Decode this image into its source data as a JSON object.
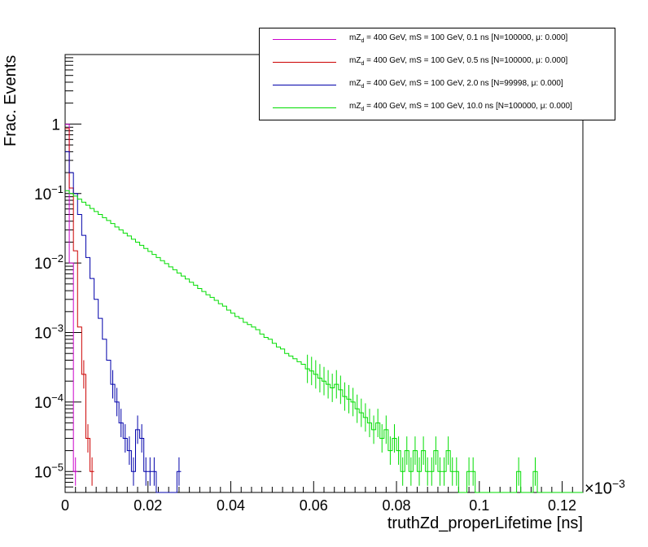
{
  "chart_data": {
    "type": "line",
    "xlabel": "truthZd_properLifetime [ns]",
    "ylabel": "Frac. Events",
    "x_multiplier_label": "×10",
    "x_multiplier_exp": "−3",
    "xlim": [
      0,
      0.125
    ],
    "ylim": [
      5e-06,
      10
    ],
    "log_y": true,
    "grid": false,
    "legend_position": "top-right",
    "x_ticks": [
      "0",
      "0.02",
      "0.04",
      "0.06",
      "0.08",
      "0.1",
      "0.12"
    ],
    "x_tick_values": [
      0,
      0.02,
      0.04,
      0.06,
      0.08,
      0.1,
      0.12
    ],
    "y_ticks": [
      {
        "value": 1,
        "base": "1",
        "exp": ""
      },
      {
        "value": 0.1,
        "base": "10",
        "exp": "−1"
      },
      {
        "value": 0.01,
        "base": "10",
        "exp": "−2"
      },
      {
        "value": 0.001,
        "base": "10",
        "exp": "−3"
      },
      {
        "value": 0.0001,
        "base": "10",
        "exp": "−4"
      },
      {
        "value": 1e-05,
        "base": "10",
        "exp": "−5"
      }
    ],
    "bin_width": 0.001,
    "series": [
      {
        "name": "mZd = 400 GeV, mS = 100 GeV, 0.1 ns [N=100000, μ: 0.000]",
        "legend_prefix": "mZ",
        "legend_sub": "d",
        "legend_rest": " = 400 GeV, mS = 100 GeV, 0.1 ns [N=100000, μ: 0.000]",
        "color": "#cc00cc",
        "values": [
          0.99,
          0.01,
          1e-05
        ]
      },
      {
        "name": "mZd = 400 GeV, mS = 100 GeV, 0.5 ns [N=100000, μ: 0.000]",
        "legend_prefix": "mZ",
        "legend_sub": "d",
        "legend_rest": " = 400 GeV, mS = 100 GeV, 0.5 ns [N=100000, μ: 0.000]",
        "color": "#cc0000",
        "values": [
          0.86,
          0.12,
          0.015,
          0.0012,
          0.00025,
          3e-05,
          1e-05
        ]
      },
      {
        "name": "mZd = 400 GeV, mS = 100 GeV, 2.0 ns [N=99998, μ: 0.000]",
        "legend_prefix": "mZ",
        "legend_sub": "d",
        "legend_rest": " = 400 GeV, mS = 100 GeV, 2.0 ns [N=99998, μ: 0.000]",
        "color": "#0000aa",
        "values": [
          0.4,
          0.2,
          0.1,
          0.05,
          0.025,
          0.012,
          0.006,
          0.003,
          0.0016,
          0.0008,
          0.0004,
          0.00018,
          0.0001,
          5e-05,
          3e-05,
          2e-05,
          1e-05,
          4e-05,
          3e-05,
          1e-05,
          1e-05,
          1e-05,
          5e-06,
          5e-06,
          5e-06,
          5e-06,
          5e-06,
          1e-05
        ]
      },
      {
        "name": "mZd = 400 GeV, mS = 100 GeV, 10.0 ns [N=100000, μ: 0.000]",
        "legend_prefix": "mZ",
        "legend_sub": "d",
        "legend_rest": " = 400 GeV, mS = 100 GeV, 10.0 ns [N=100000, μ: 0.000]",
        "color": "#00dd00",
        "values": [
          0.11,
          0.1,
          0.092,
          0.083,
          0.075,
          0.068,
          0.061,
          0.055,
          0.05,
          0.045,
          0.041,
          0.037,
          0.033,
          0.03,
          0.027,
          0.0245,
          0.022,
          0.02,
          0.018,
          0.0162,
          0.0147,
          0.0133,
          0.012,
          0.0108,
          0.0098,
          0.0088,
          0.008,
          0.0072,
          0.0065,
          0.0059,
          0.0053,
          0.0048,
          0.0043,
          0.0039,
          0.0035,
          0.0032,
          0.0029,
          0.0026,
          0.0024,
          0.0021,
          0.0019,
          0.0017,
          0.0016,
          0.0014,
          0.0013,
          0.0012,
          0.0011,
          0.00095,
          0.00085,
          0.0008,
          0.0007,
          0.00062,
          0.00058,
          0.0005,
          0.00046,
          0.00042,
          0.00038,
          0.00035,
          0.0003,
          0.00028,
          0.00025,
          0.00022,
          0.0002,
          0.00018,
          0.00016,
          0.00018,
          0.00015,
          0.00012,
          0.00011,
          0.0001,
          8e-05,
          7e-05,
          6e-05,
          5e-05,
          4e-05,
          5e-05,
          3e-05,
          4e-05,
          2e-05,
          3e-05,
          2e-05,
          1e-05,
          2e-05,
          1e-05,
          2e-05,
          1e-05,
          2e-05,
          1e-05,
          1e-05,
          2e-05,
          1e-05,
          1e-05,
          2e-05,
          1e-05,
          1e-05,
          5e-06,
          5e-06,
          1e-05,
          1e-05,
          5e-06,
          5e-06,
          5e-06,
          5e-06,
          5e-06,
          5e-06,
          5e-06,
          5e-06,
          5e-06,
          5e-06,
          1e-05,
          5e-06,
          5e-06,
          5e-06,
          1e-05,
          5e-06,
          5e-06,
          5e-06,
          5e-06,
          5e-06,
          5e-06,
          5e-06,
          5e-06,
          5e-06,
          5e-06,
          5e-06
        ]
      }
    ]
  }
}
